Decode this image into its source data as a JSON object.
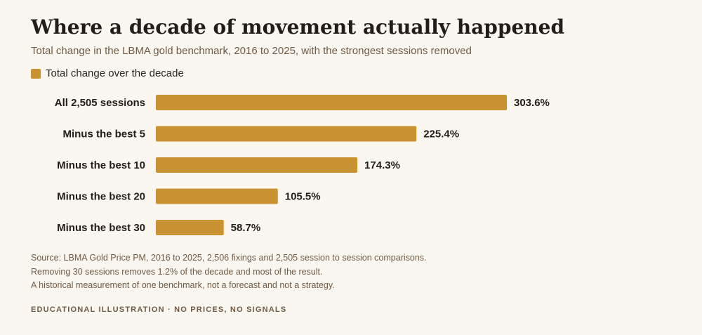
{
  "title": "Where a decade of movement actually happened",
  "subtitle": "Total change in the LBMA gold benchmark, 2016 to 2025, with the strongest sessions removed",
  "colors": {
    "bar": "#c99333",
    "background": "#faf7f0"
  },
  "chart_data": {
    "type": "bar",
    "orientation": "horizontal",
    "categories": [
      "All 2,505 sessions",
      "Minus the best 5",
      "Minus the best 10",
      "Minus the best 20",
      "Minus the best 30"
    ],
    "series": [
      {
        "name": "Total change over the decade",
        "values": [
          303.6,
          225.4,
          174.3,
          105.5,
          58.7
        ],
        "value_labels": [
          "303.6%",
          "225.4%",
          "174.3%",
          "105.5%",
          "58.7%"
        ]
      }
    ],
    "xlim": [
      0,
      303.6
    ],
    "grid": false,
    "legend_placement": "top-left"
  },
  "notes": [
    "Source: LBMA Gold Price PM, 2016 to 2025, 2,506 fixings and 2,505 session to session comparisons.",
    "Removing 30 sessions removes 1.2% of the decade and most of the result.",
    "A historical measurement of one benchmark, not a forecast and not a strategy."
  ],
  "footer_tag": "EDUCATIONAL ILLUSTRATION · NO PRICES, NO SIGNALS"
}
